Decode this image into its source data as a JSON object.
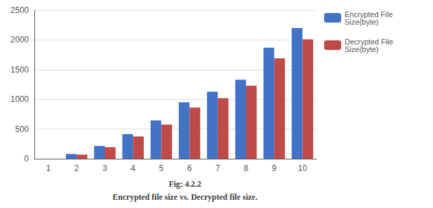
{
  "chart_data": {
    "type": "bar",
    "title": "Fig: 4.2.2",
    "subtitle": "Encrypted file size vs. Decrypted file size.",
    "categories": [
      1,
      2,
      3,
      4,
      5,
      6,
      7,
      8,
      9,
      10
    ],
    "series": [
      {
        "name": "Encrypted File\nSize(byte)",
        "color": "#4472C4",
        "values": [
          0,
          80,
          215,
          415,
          645,
          950,
          1130,
          1330,
          1870,
          2200
        ]
      },
      {
        "name": "Decrypted File\nSize(byte)",
        "color": "#BE4B48",
        "values": [
          0,
          70,
          195,
          375,
          575,
          860,
          1020,
          1230,
          1690,
          2010
        ]
      }
    ],
    "ylim": [
      0,
      2500
    ],
    "yticks": [
      0,
      500,
      1000,
      1500,
      2000,
      2500
    ],
    "grid": true,
    "legend": "right"
  }
}
